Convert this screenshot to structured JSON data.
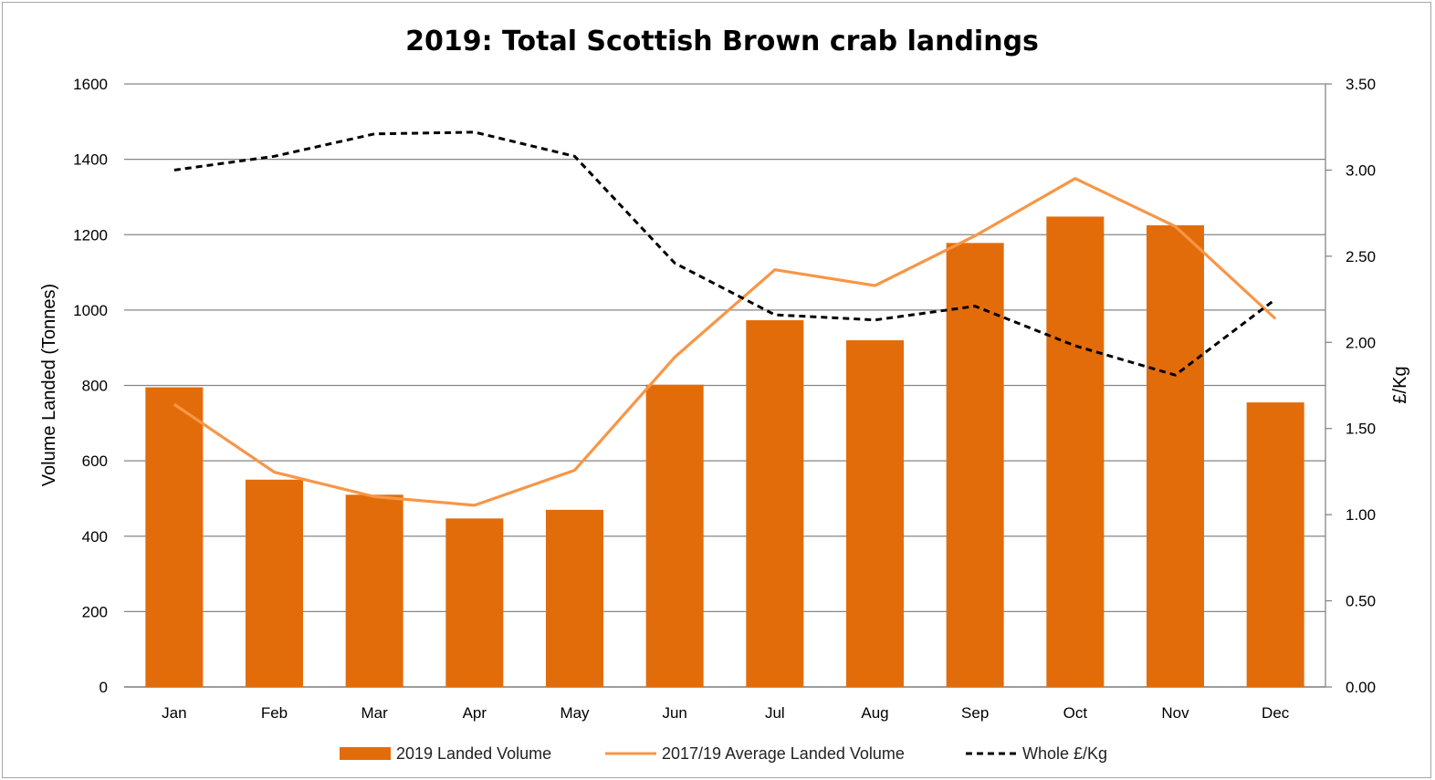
{
  "chart_data": {
    "type": "bar",
    "title": "2019: Total Scottish Brown crab landings",
    "ylabel": "Volume Landed (Tonnes)",
    "y2label": "£/Kg",
    "categories": [
      "Jan",
      "Feb",
      "Mar",
      "Apr",
      "May",
      "Jun",
      "Jul",
      "Aug",
      "Sep",
      "Oct",
      "Nov",
      "Dec"
    ],
    "ylim": [
      0,
      1600
    ],
    "y2lim": [
      0,
      3.5
    ],
    "yticks": [
      "0",
      "200",
      "400",
      "600",
      "800",
      "1000",
      "1200",
      "1400",
      "1600"
    ],
    "y2ticks": [
      "0.00",
      "0.50",
      "1.00",
      "1.50",
      "2.00",
      "2.50",
      "3.00",
      "3.50"
    ],
    "grid": true,
    "legend_position": "bottom",
    "series": [
      {
        "name": "2019  Landed Volume",
        "type": "bar",
        "axis": "left",
        "color": "#e36c0a",
        "values": [
          795,
          550,
          510,
          447,
          470,
          802,
          973,
          920,
          1178,
          1248,
          1225,
          755
        ]
      },
      {
        "name": "2017/19 Average Landed Volume",
        "type": "line",
        "axis": "left",
        "color": "#f79646",
        "values": [
          750,
          570,
          505,
          482,
          575,
          875,
          1107,
          1065,
          1197,
          1349,
          1222,
          977
        ]
      },
      {
        "name": "Whole £/Kg",
        "type": "line",
        "axis": "right",
        "color": "#000000",
        "dashed": true,
        "values": [
          3.0,
          3.08,
          3.21,
          3.22,
          3.08,
          2.46,
          2.16,
          2.13,
          2.21,
          1.98,
          1.81,
          2.25
        ]
      }
    ]
  }
}
